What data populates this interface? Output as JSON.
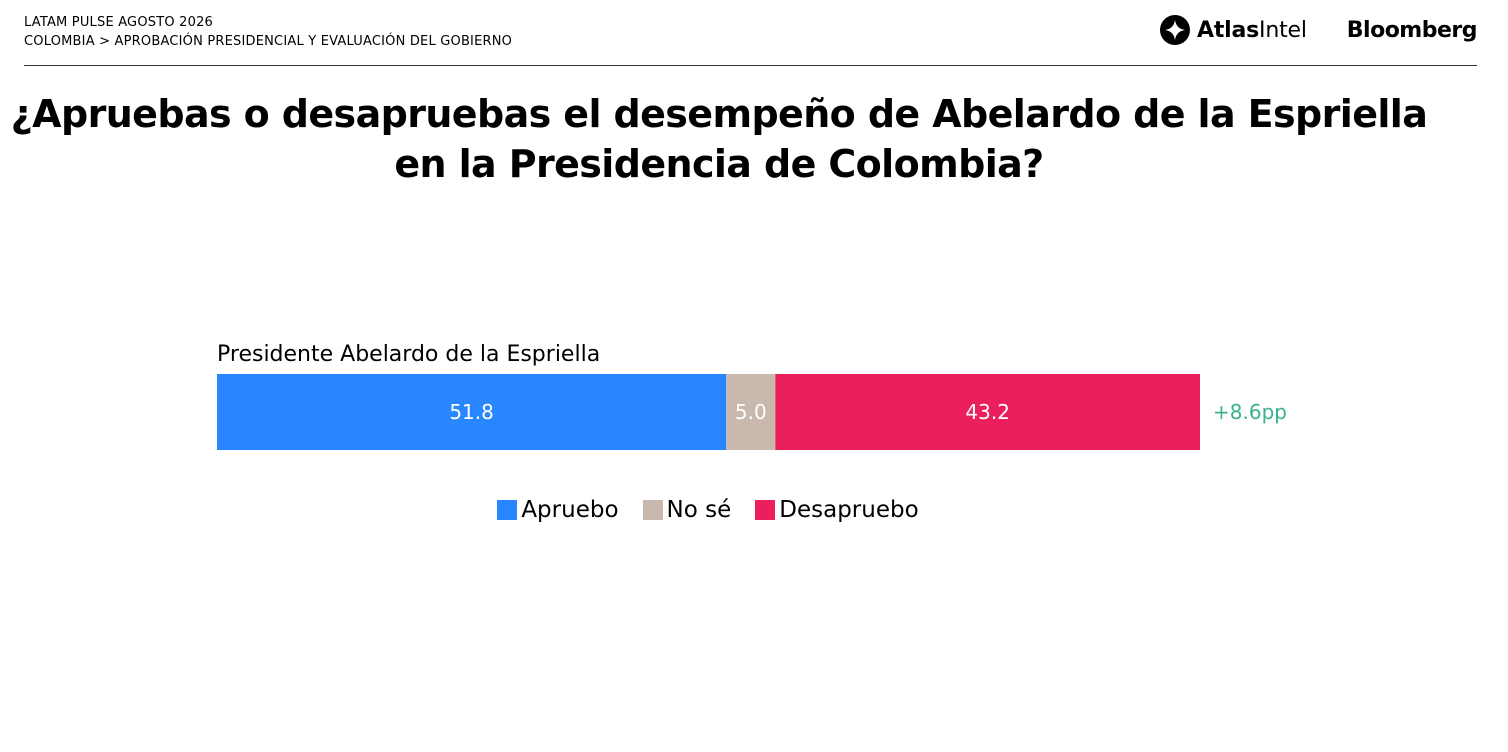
{
  "header": {
    "line1": "LATAM PULSE AGOSTO 2026",
    "line2": "COLOMBIA > APROBACIÓN PRESIDENCIAL  Y EVALUACIÓN DEL GOBIERNO"
  },
  "logos": {
    "atlas_bold": "Atlas",
    "atlas_light": "Intel",
    "bloomberg": "Bloomberg"
  },
  "title": {
    "line1": "¿Apruebas o desapruebas el desempeño de Abelardo de la Espriella",
    "line2": "en la Presidencia de Colombia?"
  },
  "chart_data": {
    "type": "bar",
    "orientation": "horizontal-stacked",
    "categories": [
      "Presidente Abelardo de la Espriella"
    ],
    "series": [
      {
        "name": "Apruebo",
        "values": [
          51.8
        ],
        "label": "51.8",
        "color": "#2886FF"
      },
      {
        "name": "No sé",
        "values": [
          5.0
        ],
        "label": "5.0",
        "color": "#C8B8AE"
      },
      {
        "name": "Desapruebo",
        "values": [
          43.2
        ],
        "label": "43.2",
        "color": "#EC1F5D"
      }
    ],
    "net_label": "+8.6pp",
    "net_color": "#3BB08F",
    "xlim": [
      0,
      100
    ],
    "grid": false,
    "legend_position": "bottom"
  }
}
